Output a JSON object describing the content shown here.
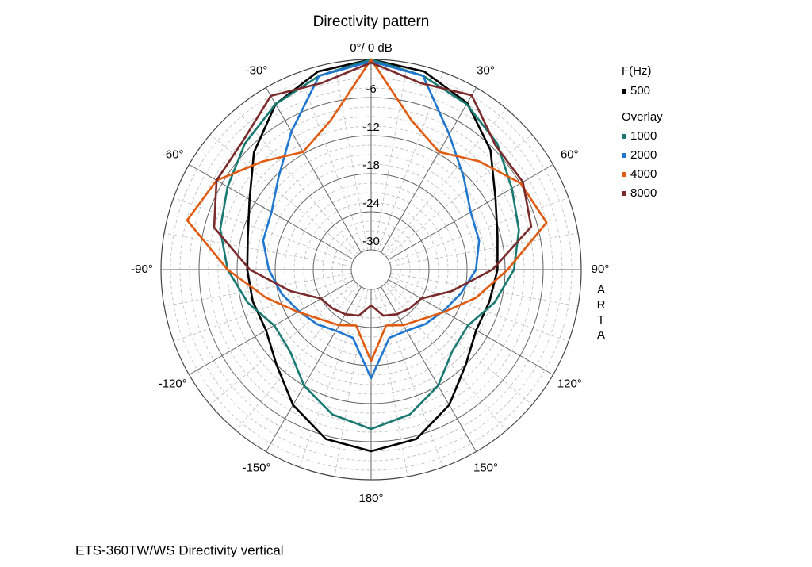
{
  "chart_data": {
    "type": "polar",
    "title": "Directivity pattern",
    "footer": "ETS-360TW/WS  Directivity vertical",
    "watermark": "ARTA",
    "legend_title": "F(Hz)",
    "overlay_title": "Overlay",
    "rlim": [
      -30,
      0
    ],
    "rticks": [
      -6,
      -12,
      -18,
      -24,
      -30
    ],
    "thetaticks": [
      {
        "value": 0,
        "label": "0°/ 0 dB"
      },
      {
        "value": 30,
        "label": "30°"
      },
      {
        "value": 60,
        "label": "60°"
      },
      {
        "value": 90,
        "label": "90°"
      },
      {
        "value": 120,
        "label": "120°"
      },
      {
        "value": 150,
        "label": "150°"
      },
      {
        "value": 180,
        "label": "180°"
      },
      {
        "value": -150,
        "label": "-150°"
      },
      {
        "value": -120,
        "label": "-120°"
      },
      {
        "value": -90,
        "label": "-90°"
      },
      {
        "value": -60,
        "label": "-60°"
      },
      {
        "value": -30,
        "label": "-30°"
      }
    ],
    "theta": [
      0,
      15,
      30,
      45,
      60,
      75,
      90,
      105,
      120,
      135,
      150,
      165,
      180,
      195,
      210,
      225,
      240,
      255,
      270,
      285,
      300,
      315,
      330,
      345
    ],
    "series": [
      {
        "name": "500",
        "color": "#000000",
        "values": [
          0,
          -0.8,
          -2.8,
          -6.5,
          -10.5,
          -12.5,
          -13.2,
          -13.8,
          -14,
          -12,
          -8.5,
          -5.5,
          -4.5,
          -5.5,
          -8.5,
          -12,
          -14,
          -13.8,
          -13.6,
          -13,
          -11,
          -7,
          -3,
          -0.8
        ]
      },
      {
        "name": "1000",
        "color": "#1a7a73",
        "values": [
          0,
          -1.5,
          -3,
          -5,
          -7.5,
          -9,
          -10.6,
          -13,
          -15.5,
          -15,
          -12,
          -9.5,
          -8,
          -9.5,
          -12,
          -15,
          -15.5,
          -13,
          -10.5,
          -8.5,
          -7,
          -5,
          -3,
          -1.5
        ]
      },
      {
        "name": "2000",
        "color": "#1f77d0",
        "values": [
          -0.3,
          -1.5,
          -8.5,
          -12.5,
          -15,
          -15.5,
          -16.6,
          -18.5,
          -20,
          -21,
          -22,
          -22,
          -16,
          -22,
          -22,
          -21,
          -20,
          -18.5,
          -17,
          -15.5,
          -15,
          -12.5,
          -8,
          -1.5
        ]
      },
      {
        "name": "4000",
        "color": "#e05a10",
        "values": [
          0,
          -8.7,
          -11.7,
          -9,
          -5.9,
          -4.5,
          -11.6,
          -16,
          -19.8,
          -22,
          -23,
          -24,
          -18.7,
          -24,
          -23,
          -22,
          -19.8,
          -16,
          -10.5,
          -3.1,
          -5,
          -9,
          -11.7,
          -8.7
        ]
      },
      {
        "name": "8000",
        "color": "#7a2a2a",
        "values": [
          -0.5,
          -2.7,
          -1.4,
          -5.4,
          -5.5,
          -7,
          -14,
          -20,
          -24,
          -24.5,
          -25,
          -25.6,
          -27.5,
          -25.6,
          -25,
          -24.5,
          -24,
          -20,
          -14,
          -7.5,
          -5,
          -4.5,
          -1.5,
          -2.7
        ]
      }
    ]
  }
}
